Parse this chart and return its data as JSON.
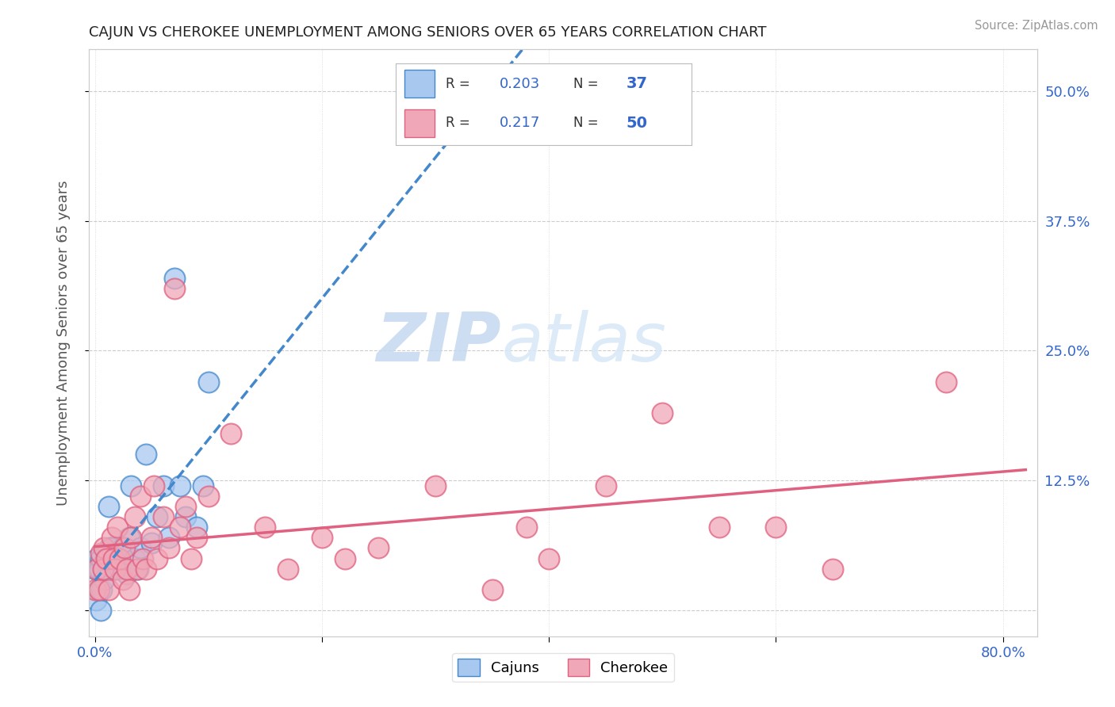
{
  "title": "CAJUN VS CHEROKEE UNEMPLOYMENT AMONG SENIORS OVER 65 YEARS CORRELATION CHART",
  "source": "Source: ZipAtlas.com",
  "ylabel": "Unemployment Among Seniors over 65 years",
  "cajun_R": 0.203,
  "cajun_N": 37,
  "cherokee_R": 0.217,
  "cherokee_N": 50,
  "cajun_color": "#a8c8f0",
  "cherokee_color": "#f0a8b8",
  "cajun_line_color": "#4488cc",
  "cherokee_line_color": "#e06080",
  "watermark_zip": "ZIP",
  "watermark_atlas": "atlas",
  "xlim": [
    -0.005,
    0.83
  ],
  "ylim": [
    -0.025,
    0.54
  ],
  "xtick_positions": [
    0.0,
    0.2,
    0.4,
    0.6,
    0.8
  ],
  "ytick_positions": [
    0.0,
    0.125,
    0.25,
    0.375,
    0.5
  ],
  "ytick_labels": [
    "",
    "12.5%",
    "25.0%",
    "37.5%",
    "50.0%"
  ],
  "cajun_x": [
    0.0,
    0.001,
    0.002,
    0.003,
    0.004,
    0.005,
    0.006,
    0.007,
    0.008,
    0.009,
    0.01,
    0.012,
    0.013,
    0.015,
    0.016,
    0.018,
    0.02,
    0.022,
    0.025,
    0.028,
    0.03,
    0.032,
    0.035,
    0.038,
    0.04,
    0.045,
    0.05,
    0.055,
    0.06,
    0.065,
    0.07,
    0.075,
    0.08,
    0.09,
    0.095,
    0.1,
    0.005
  ],
  "cajun_y": [
    0.04,
    0.01,
    0.05,
    0.02,
    0.04,
    0.05,
    0.02,
    0.04,
    0.03,
    0.05,
    0.05,
    0.1,
    0.06,
    0.06,
    0.045,
    0.04,
    0.05,
    0.04,
    0.06,
    0.035,
    0.07,
    0.12,
    0.05,
    0.04,
    0.06,
    0.15,
    0.065,
    0.09,
    0.12,
    0.07,
    0.32,
    0.12,
    0.09,
    0.08,
    0.12,
    0.22,
    0.0
  ],
  "cherokee_x": [
    0.0,
    0.002,
    0.004,
    0.005,
    0.007,
    0.008,
    0.01,
    0.012,
    0.015,
    0.016,
    0.018,
    0.02,
    0.022,
    0.025,
    0.026,
    0.028,
    0.03,
    0.032,
    0.035,
    0.037,
    0.04,
    0.042,
    0.045,
    0.05,
    0.052,
    0.055,
    0.06,
    0.065,
    0.07,
    0.075,
    0.08,
    0.085,
    0.09,
    0.1,
    0.12,
    0.15,
    0.17,
    0.2,
    0.22,
    0.25,
    0.3,
    0.35,
    0.38,
    0.4,
    0.45,
    0.5,
    0.55,
    0.6,
    0.65,
    0.75
  ],
  "cherokee_y": [
    0.02,
    0.04,
    0.02,
    0.055,
    0.04,
    0.06,
    0.05,
    0.02,
    0.07,
    0.05,
    0.04,
    0.08,
    0.05,
    0.03,
    0.06,
    0.04,
    0.02,
    0.07,
    0.09,
    0.04,
    0.11,
    0.05,
    0.04,
    0.07,
    0.12,
    0.05,
    0.09,
    0.06,
    0.31,
    0.08,
    0.1,
    0.05,
    0.07,
    0.11,
    0.17,
    0.08,
    0.04,
    0.07,
    0.05,
    0.06,
    0.12,
    0.02,
    0.08,
    0.05,
    0.12,
    0.19,
    0.08,
    0.08,
    0.04,
    0.22
  ]
}
